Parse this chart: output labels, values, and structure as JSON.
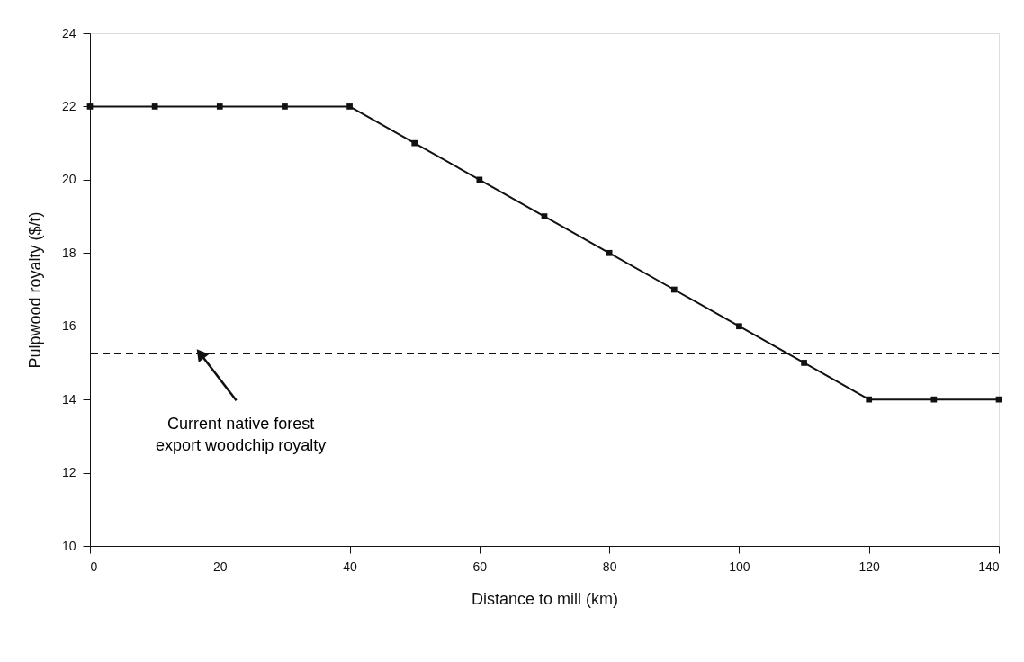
{
  "chart_data": {
    "type": "line",
    "xlabel": "Distance to mill (km)",
    "ylabel": "Pulpwood royalty ($/t)",
    "x": [
      0,
      10,
      20,
      30,
      40,
      50,
      60,
      70,
      80,
      90,
      100,
      110,
      120,
      130,
      140
    ],
    "series": [
      {
        "color": "#111111",
        "values": [
          22,
          22,
          22,
          22,
          22,
          21,
          20,
          19,
          18,
          17,
          16,
          15,
          14,
          14,
          14
        ]
      }
    ],
    "marker": "square",
    "line_style": "solid",
    "xlim": [
      0,
      140
    ],
    "xticks": [
      0,
      20,
      40,
      60,
      80,
      100,
      120,
      140
    ],
    "ylim": [
      10,
      24
    ],
    "yticks": [
      10,
      12,
      14,
      16,
      18,
      20,
      22,
      24
    ],
    "grid": false,
    "ref_lines": [
      {
        "axis": "y",
        "value": 15.25,
        "color": "#111111",
        "line_style": "dashed"
      }
    ],
    "annotations": [
      {
        "text": "Current native forest\nexport woodchip royalty",
        "x": 17,
        "y": 15.25
      }
    ]
  }
}
